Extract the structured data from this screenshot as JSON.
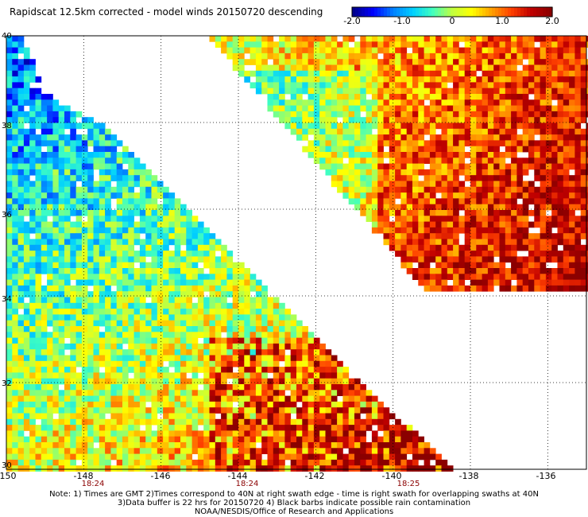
{
  "title": "Rapidscat 12.5km corrected - model winds 20150720 descending",
  "colorbar": {
    "ticks": [
      "-2.0",
      "-1.0",
      "0",
      "1.0",
      "2.0"
    ],
    "range": [
      -2.0,
      2.0
    ],
    "colors": [
      "#00008b",
      "#0000ff",
      "#0080ff",
      "#00d0ff",
      "#40ffc0",
      "#c0ff40",
      "#ffff00",
      "#ffa000",
      "#ff4000",
      "#c00000",
      "#8b0000"
    ]
  },
  "map": {
    "lon_labels": [
      "-150",
      "-148",
      "-146",
      "-144",
      "-142",
      "-140",
      "-138",
      "-136"
    ],
    "lat_labels": [
      "40",
      "38",
      "36",
      "34",
      "32",
      "30"
    ],
    "lon_range": [
      -150,
      -135
    ],
    "lat_range": [
      30,
      40
    ],
    "time_labels": [
      {
        "lon": -148,
        "text": "18:24"
      },
      {
        "lon": -144,
        "text": "18:24"
      },
      {
        "lon": -140,
        "text": "18:25"
      }
    ],
    "grid": "dotted"
  },
  "notes": [
    "Note: 1) Times are GMT 2)Times correspond to 40N at right swath edge - time is right swath for overlapping swaths at 40N",
    "3)Data buffer is 22 hrs for 20150720 4) Black barbs indicate possible rain contamination",
    "NOAA/NESDIS/Office of Research and Applications"
  ]
}
